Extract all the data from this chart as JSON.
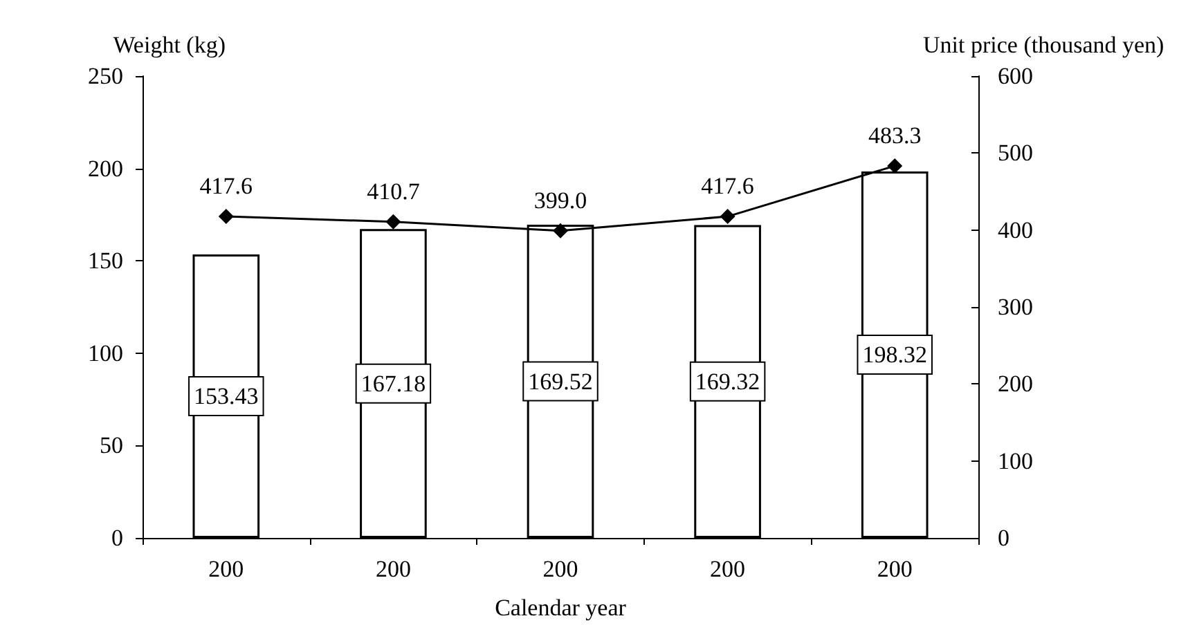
{
  "chart_data": {
    "type": "bar",
    "xlabel": "Calendar year",
    "ylabel": "Weight (kg)",
    "y2label": "Unit price (thousand yen)",
    "categories": [
      "200",
      "200",
      "200",
      "200",
      "200"
    ],
    "series": [
      {
        "color": "#ffffff",
        "values": [
          153.43,
          167.18,
          169.52,
          169.32,
          198.32
        ],
        "value_labels": [
          "153.43",
          "167.18",
          "169.52",
          "169.32",
          "198.32"
        ]
      },
      {
        "type": "line",
        "axis": "y2",
        "color": "#000000",
        "marker": "diamond",
        "values": [
          417.6,
          410.7,
          399.0,
          417.6,
          483.3
        ],
        "value_labels": [
          "417.6",
          "410.7",
          "399.0",
          "417.6",
          "483.3"
        ]
      }
    ],
    "ylim": [
      0,
      250
    ],
    "yticks": [
      0,
      50,
      100,
      150,
      200,
      250
    ],
    "y2lim": [
      0,
      600
    ],
    "y2ticks": [
      0,
      100,
      200,
      300,
      400,
      500,
      600
    ],
    "grid": false
  }
}
